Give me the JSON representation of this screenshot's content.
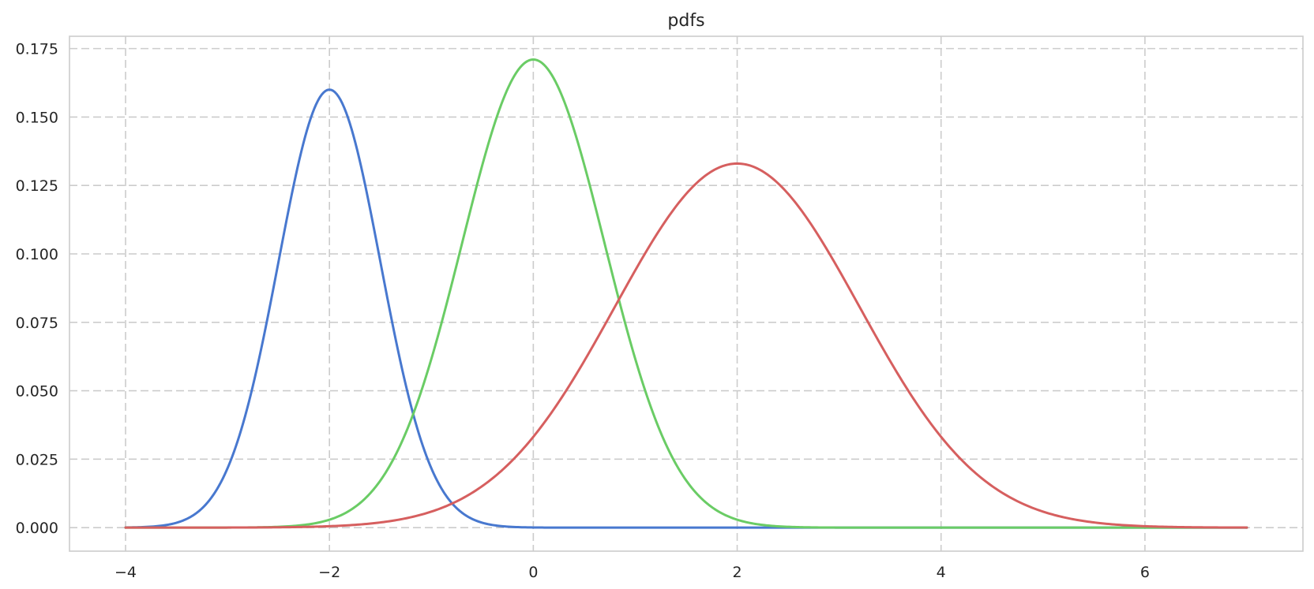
{
  "chart_data": {
    "type": "line",
    "title": "pdfs",
    "xlabel": "",
    "ylabel": "",
    "xlim": [
      -4.55,
      7.55
    ],
    "ylim": [
      -0.0086,
      0.1795
    ],
    "xticks": [
      -4,
      -2,
      0,
      2,
      4,
      6
    ],
    "xtick_labels": [
      "−4",
      "−2",
      "0",
      "2",
      "4",
      "6"
    ],
    "yticks": [
      0.0,
      0.025,
      0.05,
      0.075,
      0.1,
      0.125,
      0.15,
      0.175
    ],
    "ytick_labels": [
      "0.000",
      "0.025",
      "0.050",
      "0.075",
      "0.100",
      "0.125",
      "0.150",
      "0.175"
    ],
    "grid": true,
    "legend": "none",
    "x_range": [
      -4,
      7
    ],
    "series": [
      {
        "color": "#4878cf",
        "mean": -2,
        "std": 0.5,
        "peak": 0.16
      },
      {
        "color": "#6acc65",
        "mean": 0,
        "std": 0.7,
        "peak": 0.171
      },
      {
        "color": "#d65f5f",
        "mean": 2,
        "std": 1.2,
        "peak": 0.133
      }
    ]
  }
}
